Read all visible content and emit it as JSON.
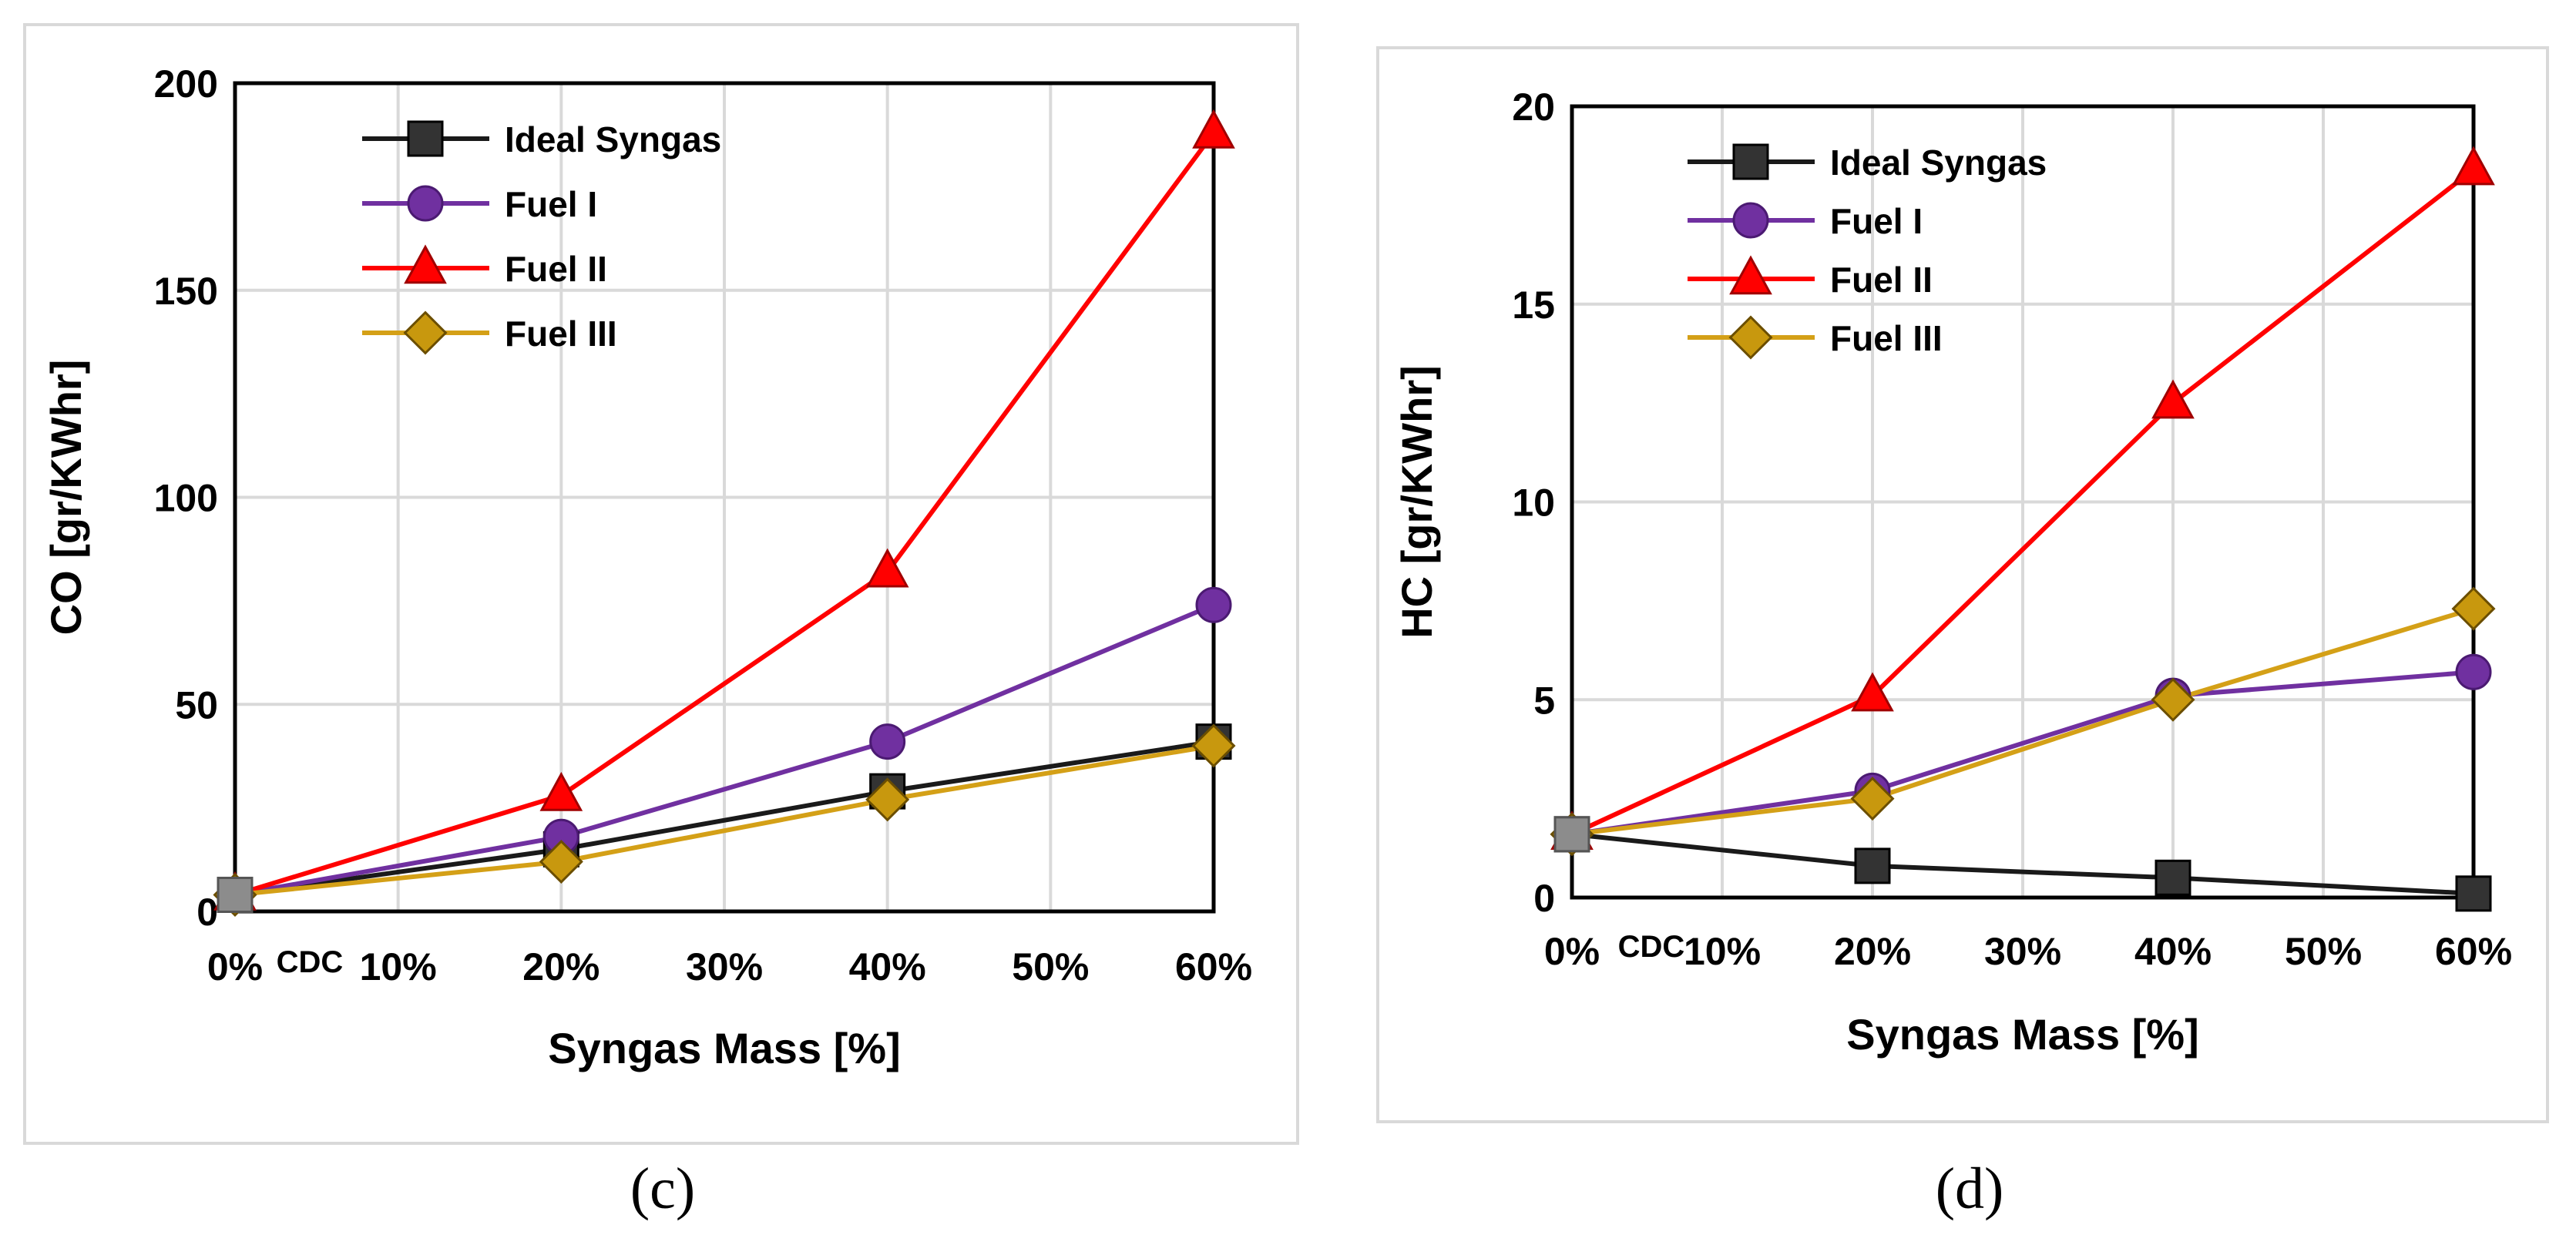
{
  "panels": [
    {
      "label": "(c)"
    },
    {
      "label": "(d)"
    }
  ],
  "chart_data": [
    {
      "type": "line",
      "panel_label": "(c)",
      "xlabel": "Syngas Mass [%]",
      "ylabel": "CO [gr/KWhr]",
      "x_tick_labels": [
        "0%",
        "10%",
        "20%",
        "30%",
        "40%",
        "50%",
        "60%"
      ],
      "x_annotation": "CDC",
      "xlim": [
        0,
        60
      ],
      "ylim": [
        0,
        200
      ],
      "y_ticks": [
        0,
        50,
        100,
        150,
        200
      ],
      "grid": true,
      "legend_position": "top-left",
      "series": [
        {
          "name": "Ideal Syngas",
          "marker": "square",
          "color": "#1a1a1a",
          "marker_color": "#333333",
          "x": [
            0,
            20,
            40,
            60
          ],
          "y": [
            4,
            15,
            29,
            41
          ]
        },
        {
          "name": "Fuel I",
          "marker": "circle",
          "color": "#7030a0",
          "marker_color": "#7030a0",
          "x": [
            0,
            20,
            40,
            60
          ],
          "y": [
            4,
            18,
            41,
            74
          ]
        },
        {
          "name": "Fuel II",
          "marker": "triangle",
          "color": "#ff0000",
          "marker_color": "#ff0000",
          "x": [
            0,
            20,
            40,
            60
          ],
          "y": [
            4,
            28,
            82,
            188
          ]
        },
        {
          "name": "Fuel III",
          "marker": "diamond",
          "color": "#d4a017",
          "marker_color": "#c8980e",
          "x": [
            0,
            20,
            40,
            60
          ],
          "y": [
            4,
            12,
            27,
            40
          ]
        }
      ]
    },
    {
      "type": "line",
      "panel_label": "(d)",
      "xlabel": "Syngas Mass [%]",
      "ylabel": "HC [gr/KWhr]",
      "x_tick_labels": [
        "0%",
        "10%",
        "20%",
        "30%",
        "40%",
        "50%",
        "60%"
      ],
      "x_annotation": "CDC",
      "xlim": [
        0,
        60
      ],
      "ylim": [
        0,
        20
      ],
      "y_ticks": [
        0,
        5,
        10,
        15,
        20
      ],
      "grid": true,
      "legend_position": "top-left",
      "series": [
        {
          "name": "Ideal Syngas",
          "marker": "square",
          "color": "#1a1a1a",
          "marker_color": "#333333",
          "x": [
            0,
            20,
            40,
            60
          ],
          "y": [
            1.6,
            0.8,
            0.5,
            0.1
          ]
        },
        {
          "name": "Fuel I",
          "marker": "circle",
          "color": "#7030a0",
          "marker_color": "#7030a0",
          "x": [
            0,
            20,
            40,
            60
          ],
          "y": [
            1.6,
            2.7,
            5.1,
            5.7
          ]
        },
        {
          "name": "Fuel II",
          "marker": "triangle",
          "color": "#ff0000",
          "marker_color": "#ff0000",
          "x": [
            0,
            20,
            40,
            60
          ],
          "y": [
            1.6,
            5.1,
            12.5,
            18.4
          ]
        },
        {
          "name": "Fuel III",
          "marker": "diamond",
          "color": "#d4a017",
          "marker_color": "#c8980e",
          "x": [
            0,
            20,
            40,
            60
          ],
          "y": [
            1.6,
            2.5,
            5.0,
            7.3
          ]
        }
      ]
    }
  ]
}
